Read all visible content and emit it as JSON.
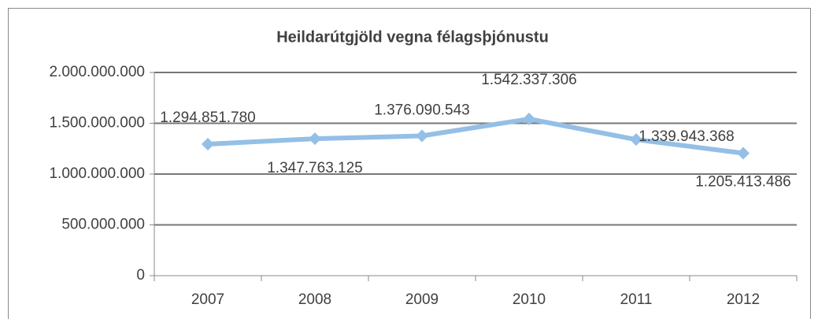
{
  "chart_data": {
    "type": "line",
    "title": "Heildarútgjöld vegna félagsþjónustu",
    "categories": [
      "2007",
      "2008",
      "2009",
      "2010",
      "2011",
      "2012"
    ],
    "series": [
      {
        "name": "Heildarútgjöld",
        "color": "#94bfe6",
        "values": [
          1294851780,
          1347763125,
          1376090543,
          1542337306,
          1339943368,
          1205413486
        ],
        "value_labels": [
          "1.294.851.780",
          "1.347.763.125",
          "1.376.090.543",
          "1.542.337.306",
          "1.339.943.368",
          "1.205.413.486"
        ]
      }
    ],
    "ylim": [
      0,
      2000000000
    ],
    "yticks": [
      0,
      {
        "value": 500000000,
        "label": "500.000.000"
      },
      {
        "value": 1000000000,
        "label": "1.000.000.000"
      },
      {
        "value": 1500000000,
        "label": "1.500.000.000"
      },
      {
        "value": 2000000000,
        "label": "2.000.000.000"
      }
    ],
    "grid": true
  }
}
